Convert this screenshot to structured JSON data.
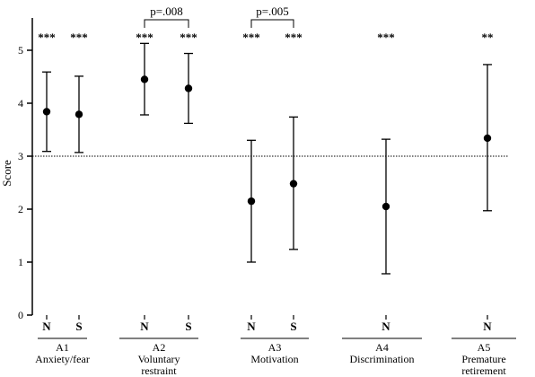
{
  "chart_data": {
    "type": "scatter",
    "ylabel": "Score",
    "ylim": [
      0,
      5.5
    ],
    "yticks": [
      "0",
      "1",
      "2",
      "3",
      "4",
      "5"
    ],
    "reference_line": {
      "y": 3,
      "style": "dotted"
    },
    "groups": [
      {
        "code": "A1",
        "title_lines": [
          "Anxiety/fear"
        ],
        "points": [
          {
            "label": "N",
            "mean": 3.84,
            "lower": 3.09,
            "upper": 4.59,
            "sig": "***"
          },
          {
            "label": "S",
            "mean": 3.79,
            "lower": 3.07,
            "upper": 4.51,
            "sig": "***"
          }
        ]
      },
      {
        "code": "A2",
        "title_lines": [
          "Voluntary",
          "restraint"
        ],
        "points": [
          {
            "label": "N",
            "mean": 4.45,
            "lower": 3.78,
            "upper": 5.13,
            "sig": "***"
          },
          {
            "label": "S",
            "mean": 4.28,
            "lower": 3.62,
            "upper": 4.94,
            "sig": "***"
          }
        ],
        "comparison": "p=.008"
      },
      {
        "code": "A3",
        "title_lines": [
          "Motivation"
        ],
        "points": [
          {
            "label": "N",
            "mean": 2.15,
            "lower": 1.0,
            "upper": 3.3,
            "sig": "***"
          },
          {
            "label": "S",
            "mean": 2.48,
            "lower": 1.24,
            "upper": 3.74,
            "sig": "***"
          }
        ],
        "comparison": "p=.005"
      },
      {
        "code": "A4",
        "title_lines": [
          "Discrimination"
        ],
        "points": [
          {
            "label": "N",
            "mean": 2.05,
            "lower": 0.78,
            "upper": 3.32,
            "sig": "***"
          }
        ]
      },
      {
        "code": "A5",
        "title_lines": [
          "Premature",
          "retirement"
        ],
        "points": [
          {
            "label": "N",
            "mean": 3.34,
            "lower": 1.97,
            "upper": 4.73,
            "sig": "**"
          }
        ]
      }
    ]
  }
}
